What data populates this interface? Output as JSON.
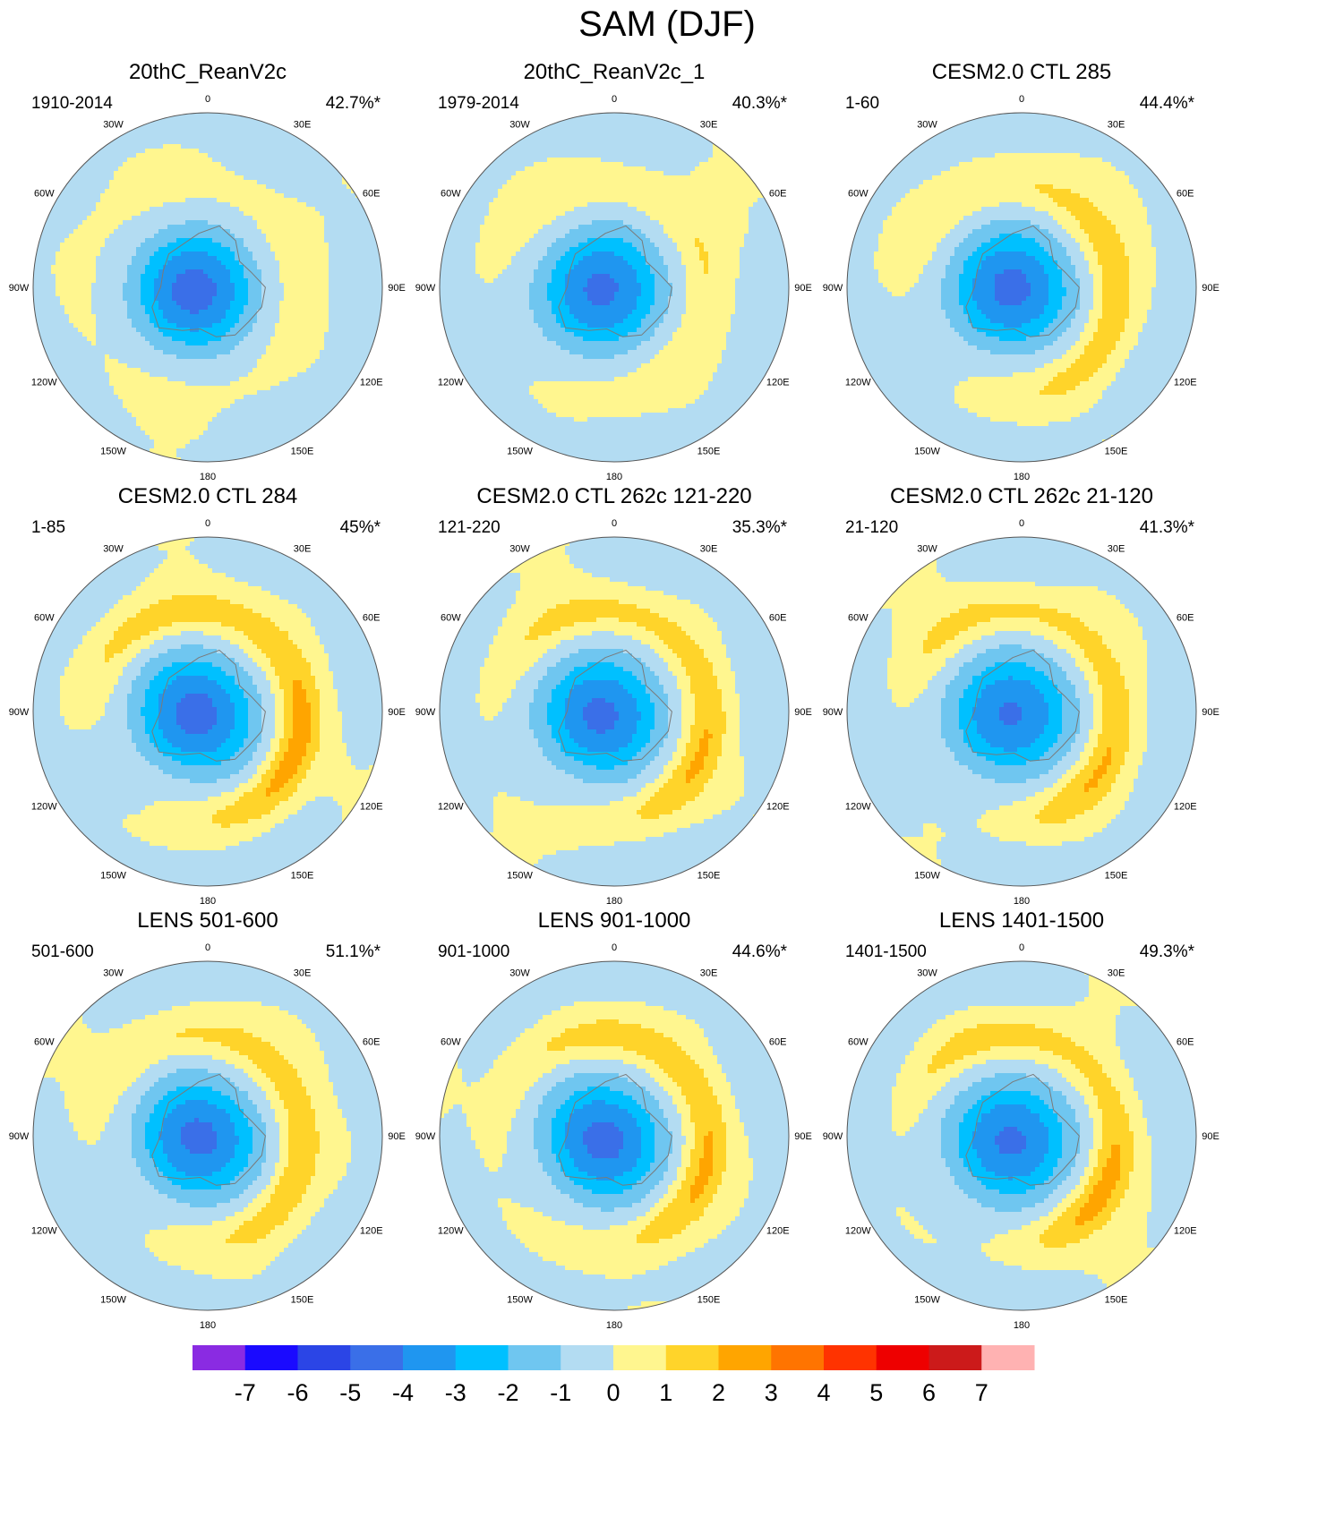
{
  "title": "SAM (DJF)",
  "colors": {
    "background": "#ffffff",
    "land_outline": "#7a7a7a",
    "circle_outline": "#555555"
  },
  "longitude_labels": [
    "0",
    "30E",
    "60E",
    "90E",
    "120E",
    "150E",
    "180",
    "150W",
    "120W",
    "90W",
    "60W",
    "30W"
  ],
  "panels": [
    {
      "title": "20thC_ReanV2c",
      "period": "1910-2014",
      "variance": "42.7%*",
      "positive_strength": 0.5,
      "hemisphere_tilt": 0.0
    },
    {
      "title": "20thC_ReanV2c_1",
      "period": "1979-2014",
      "variance": "40.3%*",
      "positive_strength": 1.2,
      "hemisphere_tilt": 0.1
    },
    {
      "title": "CESM2.0 CTL 285",
      "period": "1-60",
      "variance": "44.4%*",
      "positive_strength": 1.8,
      "hemisphere_tilt": 0.2
    },
    {
      "title": "CESM2.0 CTL 284",
      "period": "1-85",
      "variance": "45%*",
      "positive_strength": 2.4,
      "hemisphere_tilt": 0.3
    },
    {
      "title": "CESM2.0 CTL 262c 121-220",
      "period": "121-220",
      "variance": "35.3%*",
      "positive_strength": 2.1,
      "hemisphere_tilt": 0.25
    },
    {
      "title": "CESM2.0 CTL 262c 21-120",
      "period": "21-120",
      "variance": "41.3%*",
      "positive_strength": 2.1,
      "hemisphere_tilt": 0.3
    },
    {
      "title": "LENS 501-600",
      "period": "501-600",
      "variance": "51.1%*",
      "positive_strength": 1.9,
      "hemisphere_tilt": 0.25
    },
    {
      "title": "LENS 901-1000",
      "period": "901-1000",
      "variance": "44.6%*",
      "positive_strength": 2.2,
      "hemisphere_tilt": 0.2
    },
    {
      "title": "LENS 1401-1500",
      "period": "1401-1500",
      "variance": "49.3%*",
      "positive_strength": 2.2,
      "hemisphere_tilt": 0.3
    }
  ],
  "colorbar": {
    "bins": [
      {
        "color": "#8a2be2"
      },
      {
        "color": "#1a0aff"
      },
      {
        "color": "#2b45e6"
      },
      {
        "color": "#3a6fe8"
      },
      {
        "color": "#1f96f0"
      },
      {
        "color": "#00c0ff"
      },
      {
        "color": "#6fc6f0"
      },
      {
        "color": "#b3dcf2"
      },
      {
        "color": "#fff68f"
      },
      {
        "color": "#ffd42a"
      },
      {
        "color": "#ffa500"
      },
      {
        "color": "#ff7400"
      },
      {
        "color": "#ff3300"
      },
      {
        "color": "#ee0000"
      },
      {
        "color": "#cc1a1a"
      },
      {
        "color": "#ffb2b2"
      }
    ],
    "labels": [
      "-7",
      "-6",
      "-5",
      "-4",
      "-3",
      "-2",
      "-1",
      "0",
      "1",
      "2",
      "3",
      "4",
      "5",
      "6",
      "7"
    ]
  }
}
